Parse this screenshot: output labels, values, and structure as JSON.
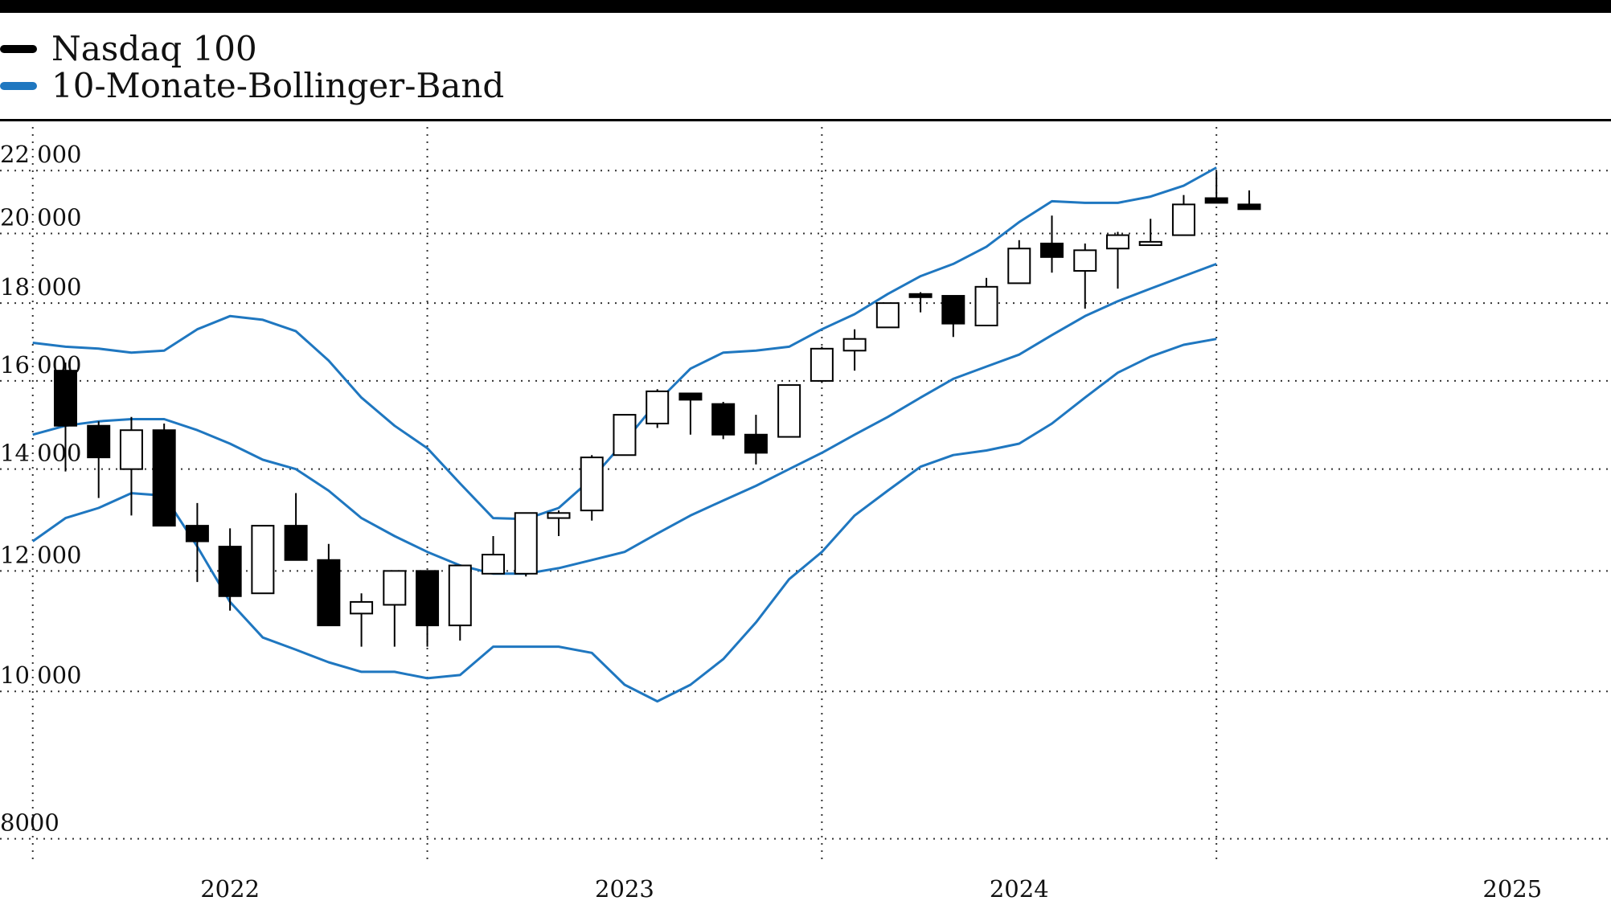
{
  "chart_data": {
    "type": "candlestick",
    "title": "",
    "legend": [
      {
        "name": "Nasdaq 100",
        "color": "#000000"
      },
      {
        "name": "10-Monate-Bollinger-Band",
        "color": "#1f77c0"
      }
    ],
    "y_scale": "log",
    "ylim": [
      7700,
      23500
    ],
    "y_ticks": [
      {
        "value": 22000,
        "label": "22 000"
      },
      {
        "value": 20000,
        "label": "20 000"
      },
      {
        "value": 18000,
        "label": "18 000"
      },
      {
        "value": 16000,
        "label": "16 000"
      },
      {
        "value": 14000,
        "label": "14 000"
      },
      {
        "value": 12000,
        "label": "12 000"
      },
      {
        "value": 10000,
        "label": "10 000"
      },
      {
        "value": 8000,
        "label": "8000"
      }
    ],
    "xlim": [
      2021.417,
      2025.5
    ],
    "x_gridlines": [
      2021.5,
      2022.5,
      2023.5,
      2024.5
    ],
    "x_labels": [
      {
        "x": 2022.0,
        "label": "2022"
      },
      {
        "x": 2023.0,
        "label": "2023"
      },
      {
        "x": 2024.0,
        "label": "2024"
      },
      {
        "x": 2025.25,
        "label": "2025"
      }
    ],
    "candles": [
      {
        "x": 2021.583,
        "open": 16250,
        "high": 16450,
        "low": 13950,
        "close": 14950
      },
      {
        "x": 2021.667,
        "open": 14950,
        "high": 15050,
        "low": 13400,
        "close": 14250
      },
      {
        "x": 2021.75,
        "open": 14000,
        "high": 15150,
        "low": 13050,
        "close": 14850
      },
      {
        "x": 2021.833,
        "open": 14850,
        "high": 15000,
        "low": 12850,
        "close": 12850
      },
      {
        "x": 2021.917,
        "open": 12850,
        "high": 13300,
        "low": 11800,
        "close": 12550
      },
      {
        "x": 2022.0,
        "open": 12450,
        "high": 12800,
        "low": 11300,
        "close": 11550
      },
      {
        "x": 2022.083,
        "open": 11600,
        "high": 12850,
        "low": 11600,
        "close": 12850
      },
      {
        "x": 2022.167,
        "open": 12850,
        "high": 13500,
        "low": 12200,
        "close": 12200
      },
      {
        "x": 2022.25,
        "open": 12200,
        "high": 12500,
        "low": 11050,
        "close": 11050
      },
      {
        "x": 2022.333,
        "open": 11250,
        "high": 11600,
        "low": 10700,
        "close": 11450
      },
      {
        "x": 2022.417,
        "open": 11400,
        "high": 12000,
        "low": 10700,
        "close": 12000
      },
      {
        "x": 2022.5,
        "open": 12000,
        "high": 12000,
        "low": 10700,
        "close": 11050
      },
      {
        "x": 2022.583,
        "open": 11050,
        "high": 12100,
        "low": 10800,
        "close": 12100
      },
      {
        "x": 2022.667,
        "open": 11950,
        "high": 12650,
        "low": 11950,
        "close": 12300
      },
      {
        "x": 2022.75,
        "open": 11950,
        "high": 13100,
        "low": 11900,
        "close": 13100
      },
      {
        "x": 2022.833,
        "open": 13000,
        "high": 13150,
        "low": 12650,
        "close": 13100
      },
      {
        "x": 2022.917,
        "open": 13150,
        "high": 14300,
        "low": 12950,
        "close": 14250
      },
      {
        "x": 2023.0,
        "open": 14300,
        "high": 15200,
        "low": 14300,
        "close": 15200
      },
      {
        "x": 2023.083,
        "open": 15000,
        "high": 15800,
        "low": 14900,
        "close": 15750
      },
      {
        "x": 2023.167,
        "open": 15700,
        "high": 15700,
        "low": 14750,
        "close": 15550
      },
      {
        "x": 2023.25,
        "open": 15450,
        "high": 15500,
        "low": 14650,
        "close": 14750
      },
      {
        "x": 2023.333,
        "open": 14750,
        "high": 15200,
        "low": 14100,
        "close": 14350
      },
      {
        "x": 2023.417,
        "open": 14700,
        "high": 15900,
        "low": 14700,
        "close": 15900
      },
      {
        "x": 2023.5,
        "open": 16000,
        "high": 16850,
        "low": 15950,
        "close": 16800
      },
      {
        "x": 2023.583,
        "open": 16750,
        "high": 17300,
        "low": 16250,
        "close": 17050
      },
      {
        "x": 2023.667,
        "open": 17350,
        "high": 18000,
        "low": 17350,
        "close": 18000
      },
      {
        "x": 2023.75,
        "open": 18250,
        "high": 18300,
        "low": 17750,
        "close": 18200
      },
      {
        "x": 2023.833,
        "open": 18200,
        "high": 18200,
        "low": 17100,
        "close": 17450
      },
      {
        "x": 2023.917,
        "open": 17400,
        "high": 18700,
        "low": 17400,
        "close": 18450
      },
      {
        "x": 2024.0,
        "open": 18550,
        "high": 19800,
        "low": 18550,
        "close": 19550
      },
      {
        "x": 2024.083,
        "open": 19700,
        "high": 20550,
        "low": 18850,
        "close": 19300
      },
      {
        "x": 2024.167,
        "open": 18900,
        "high": 19700,
        "low": 17850,
        "close": 19500
      },
      {
        "x": 2024.25,
        "open": 19550,
        "high": 20050,
        "low": 18400,
        "close": 19950
      },
      {
        "x": 2024.333,
        "open": 19650,
        "high": 20450,
        "low": 19650,
        "close": 19750
      },
      {
        "x": 2024.417,
        "open": 19950,
        "high": 21200,
        "low": 19950,
        "close": 20900
      },
      {
        "x": 2024.5,
        "open": 21100,
        "high": 21950,
        "low": 20950,
        "close": 20950
      },
      {
        "x": 2024.583,
        "open": 20900,
        "high": 21350,
        "low": 20750,
        "close": 20750
      }
    ],
    "bollinger_upper": [
      {
        "x": 2021.5,
        "y": 16950
      },
      {
        "x": 2021.583,
        "y": 16850
      },
      {
        "x": 2021.667,
        "y": 16800
      },
      {
        "x": 2021.75,
        "y": 16700
      },
      {
        "x": 2021.833,
        "y": 16750
      },
      {
        "x": 2021.917,
        "y": 17300
      },
      {
        "x": 2022.0,
        "y": 17650
      },
      {
        "x": 2022.083,
        "y": 17550
      },
      {
        "x": 2022.167,
        "y": 17250
      },
      {
        "x": 2022.25,
        "y": 16500
      },
      {
        "x": 2022.333,
        "y": 15600
      },
      {
        "x": 2022.417,
        "y": 14950
      },
      {
        "x": 2022.5,
        "y": 14450
      },
      {
        "x": 2022.583,
        "y": 13700
      },
      {
        "x": 2022.667,
        "y": 13000
      },
      {
        "x": 2022.75,
        "y": 12980
      },
      {
        "x": 2022.833,
        "y": 13200
      },
      {
        "x": 2022.917,
        "y": 13800
      },
      {
        "x": 2023.0,
        "y": 14600
      },
      {
        "x": 2023.083,
        "y": 15500
      },
      {
        "x": 2023.167,
        "y": 16300
      },
      {
        "x": 2023.25,
        "y": 16700
      },
      {
        "x": 2023.333,
        "y": 16750
      },
      {
        "x": 2023.417,
        "y": 16850
      },
      {
        "x": 2023.5,
        "y": 17300
      },
      {
        "x": 2023.583,
        "y": 17700
      },
      {
        "x": 2023.667,
        "y": 18250
      },
      {
        "x": 2023.75,
        "y": 18750
      },
      {
        "x": 2023.833,
        "y": 19100
      },
      {
        "x": 2023.917,
        "y": 19600
      },
      {
        "x": 2024.0,
        "y": 20350
      },
      {
        "x": 2024.083,
        "y": 21000
      },
      {
        "x": 2024.167,
        "y": 20950
      },
      {
        "x": 2024.25,
        "y": 20950
      },
      {
        "x": 2024.333,
        "y": 21150
      },
      {
        "x": 2024.417,
        "y": 21500
      },
      {
        "x": 2024.5,
        "y": 22100
      }
    ],
    "bollinger_middle": [
      {
        "x": 2021.5,
        "y": 14750
      },
      {
        "x": 2021.583,
        "y": 14950
      },
      {
        "x": 2021.667,
        "y": 15050
      },
      {
        "x": 2021.75,
        "y": 15100
      },
      {
        "x": 2021.833,
        "y": 15100
      },
      {
        "x": 2021.917,
        "y": 14850
      },
      {
        "x": 2022.0,
        "y": 14550
      },
      {
        "x": 2022.083,
        "y": 14200
      },
      {
        "x": 2022.167,
        "y": 14000
      },
      {
        "x": 2022.25,
        "y": 13550
      },
      {
        "x": 2022.333,
        "y": 13000
      },
      {
        "x": 2022.417,
        "y": 12650
      },
      {
        "x": 2022.5,
        "y": 12350
      },
      {
        "x": 2022.583,
        "y": 12100
      },
      {
        "x": 2022.667,
        "y": 11950
      },
      {
        "x": 2022.75,
        "y": 11950
      },
      {
        "x": 2022.833,
        "y": 12050
      },
      {
        "x": 2022.917,
        "y": 12200
      },
      {
        "x": 2023.0,
        "y": 12350
      },
      {
        "x": 2023.083,
        "y": 12700
      },
      {
        "x": 2023.167,
        "y": 13050
      },
      {
        "x": 2023.25,
        "y": 13350
      },
      {
        "x": 2023.333,
        "y": 13650
      },
      {
        "x": 2023.417,
        "y": 14000
      },
      {
        "x": 2023.5,
        "y": 14350
      },
      {
        "x": 2023.583,
        "y": 14750
      },
      {
        "x": 2023.667,
        "y": 15150
      },
      {
        "x": 2023.75,
        "y": 15600
      },
      {
        "x": 2023.833,
        "y": 16050
      },
      {
        "x": 2023.917,
        "y": 16350
      },
      {
        "x": 2024.0,
        "y": 16650
      },
      {
        "x": 2024.083,
        "y": 17150
      },
      {
        "x": 2024.167,
        "y": 17650
      },
      {
        "x": 2024.25,
        "y": 18050
      },
      {
        "x": 2024.333,
        "y": 18400
      },
      {
        "x": 2024.417,
        "y": 18750
      },
      {
        "x": 2024.5,
        "y": 19100
      }
    ],
    "bollinger_lower": [
      {
        "x": 2021.5,
        "y": 12550
      },
      {
        "x": 2021.583,
        "y": 13000
      },
      {
        "x": 2021.667,
        "y": 13200
      },
      {
        "x": 2021.75,
        "y": 13500
      },
      {
        "x": 2021.833,
        "y": 13450
      },
      {
        "x": 2021.917,
        "y": 12450
      },
      {
        "x": 2022.0,
        "y": 11450
      },
      {
        "x": 2022.083,
        "y": 10850
      },
      {
        "x": 2022.167,
        "y": 10650
      },
      {
        "x": 2022.25,
        "y": 10450
      },
      {
        "x": 2022.333,
        "y": 10300
      },
      {
        "x": 2022.417,
        "y": 10300
      },
      {
        "x": 2022.5,
        "y": 10200
      },
      {
        "x": 2022.583,
        "y": 10250
      },
      {
        "x": 2022.667,
        "y": 10700
      },
      {
        "x": 2022.75,
        "y": 10700
      },
      {
        "x": 2022.833,
        "y": 10700
      },
      {
        "x": 2022.917,
        "y": 10600
      },
      {
        "x": 2023.0,
        "y": 10100
      },
      {
        "x": 2023.083,
        "y": 9850
      },
      {
        "x": 2023.167,
        "y": 10100
      },
      {
        "x": 2023.25,
        "y": 10500
      },
      {
        "x": 2023.333,
        "y": 11100
      },
      {
        "x": 2023.417,
        "y": 11850
      },
      {
        "x": 2023.5,
        "y": 12350
      },
      {
        "x": 2023.583,
        "y": 13050
      },
      {
        "x": 2023.667,
        "y": 13550
      },
      {
        "x": 2023.75,
        "y": 14050
      },
      {
        "x": 2023.833,
        "y": 14300
      },
      {
        "x": 2023.917,
        "y": 14400
      },
      {
        "x": 2024.0,
        "y": 14550
      },
      {
        "x": 2024.083,
        "y": 15000
      },
      {
        "x": 2024.167,
        "y": 15600
      },
      {
        "x": 2024.25,
        "y": 16200
      },
      {
        "x": 2024.333,
        "y": 16600
      },
      {
        "x": 2024.417,
        "y": 16900
      },
      {
        "x": 2024.5,
        "y": 17050
      }
    ]
  }
}
